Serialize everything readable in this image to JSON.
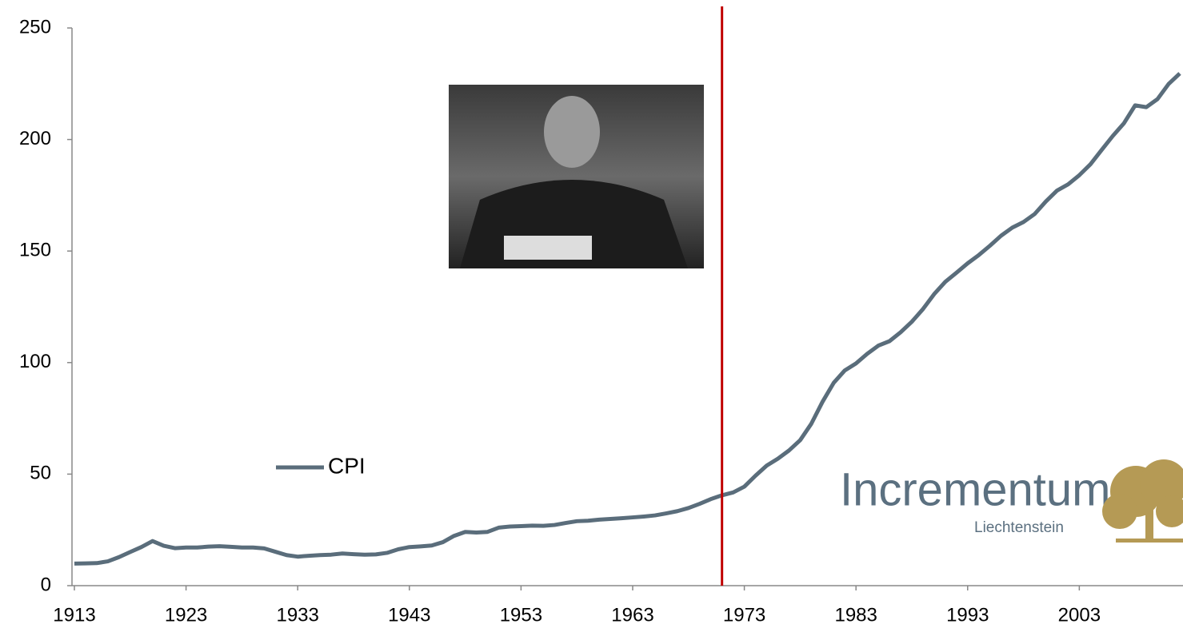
{
  "chart_data": {
    "type": "line",
    "x": [
      1913,
      1914,
      1915,
      1916,
      1917,
      1918,
      1919,
      1920,
      1921,
      1922,
      1923,
      1924,
      1925,
      1926,
      1927,
      1928,
      1929,
      1930,
      1931,
      1932,
      1933,
      1934,
      1935,
      1936,
      1937,
      1938,
      1939,
      1940,
      1941,
      1942,
      1943,
      1944,
      1945,
      1946,
      1947,
      1948,
      1949,
      1950,
      1951,
      1952,
      1953,
      1954,
      1955,
      1956,
      1957,
      1958,
      1959,
      1960,
      1961,
      1962,
      1963,
      1964,
      1965,
      1966,
      1967,
      1968,
      1969,
      1970,
      1971,
      1972,
      1973,
      1974,
      1975,
      1976,
      1977,
      1978,
      1979,
      1980,
      1981,
      1982,
      1983,
      1984,
      1985,
      1986,
      1987,
      1988,
      1989,
      1990,
      1991,
      1992,
      1993,
      1994,
      1995,
      1996,
      1997,
      1998,
      1999,
      2000,
      2001,
      2002,
      2003,
      2004,
      2005,
      2006,
      2007,
      2008,
      2009,
      2010,
      2011,
      2012
    ],
    "series": [
      {
        "name": "CPI",
        "color": "#5a6d7b",
        "values": [
          9.9,
          10.0,
          10.1,
          10.9,
          12.8,
          15.1,
          17.3,
          20.0,
          17.9,
          16.8,
          17.1,
          17.1,
          17.5,
          17.7,
          17.4,
          17.1,
          17.1,
          16.7,
          15.2,
          13.7,
          13.0,
          13.4,
          13.7,
          13.9,
          14.4,
          14.1,
          13.9,
          14.0,
          14.7,
          16.3,
          17.3,
          17.6,
          18.0,
          19.5,
          22.3,
          24.1,
          23.8,
          24.1,
          26.0,
          26.5,
          26.7,
          26.9,
          26.8,
          27.2,
          28.1,
          28.9,
          29.1,
          29.6,
          29.9,
          30.2,
          30.6,
          31.0,
          31.5,
          32.4,
          33.4,
          34.8,
          36.7,
          38.8,
          40.5,
          41.8,
          44.4,
          49.3,
          53.8,
          56.9,
          60.6,
          65.2,
          72.6,
          82.4,
          90.9,
          96.5,
          99.6,
          103.9,
          107.6,
          109.6,
          113.6,
          118.3,
          124.0,
          130.7,
          136.2,
          140.3,
          144.5,
          148.2,
          152.4,
          156.9,
          160.5,
          163.0,
          166.6,
          172.2,
          177.1,
          179.9,
          184.0,
          188.9,
          195.3,
          201.6,
          207.3,
          215.3,
          214.5,
          218.1,
          224.9,
          229.6
        ]
      }
    ],
    "xlim": [
      1913,
      2012
    ],
    "xticks": [
      1913,
      1923,
      1933,
      1943,
      1953,
      1963,
      1973,
      1983,
      1993,
      2003
    ],
    "ylim": [
      0,
      250
    ],
    "yticks": [
      0,
      50,
      100,
      150,
      200,
      250
    ],
    "vline": {
      "x": 1971,
      "color": "#c00000"
    },
    "legend": "center-left",
    "logo": {
      "name": "Incrementum",
      "sub": "Liechtenstein"
    }
  }
}
